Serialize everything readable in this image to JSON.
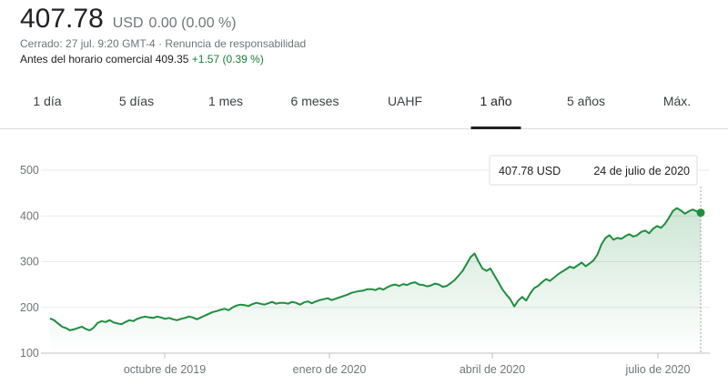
{
  "quote": {
    "price": "407.78",
    "currency": "USD",
    "change": "0.00 (0.00 %)",
    "closed_line": "Cerrado: 27 jul. 9:20 GMT-4 · ",
    "disclaimer": "Renuncia de responsabilidad",
    "premarket_label": "Antes del horario comercial 409.35",
    "premarket_change": "+1.57 (0.39 %)"
  },
  "tabs": [
    {
      "label": "1 día"
    },
    {
      "label": "5 días"
    },
    {
      "label": "1 mes"
    },
    {
      "label": "6 meses"
    },
    {
      "label": "UAHF"
    },
    {
      "label": "1 año",
      "active": true
    },
    {
      "label": "5 años"
    },
    {
      "label": "Máx."
    }
  ],
  "colors": {
    "line": "#1e8e3e",
    "grid": "#e8eaed",
    "axis": "#70757a"
  },
  "tooltip": {
    "price": "407.78 USD",
    "date": "24 de julio de 2020"
  },
  "chart_data": {
    "type": "line",
    "y_ticks": [
      100,
      200,
      300,
      400,
      500
    ],
    "ylim": [
      100,
      500
    ],
    "x_labels": [
      "octubre de 2019",
      "enero de 2020",
      "abril de 2020",
      "julio de 2020"
    ],
    "grid": true,
    "series": [
      {
        "values": [
          176,
          172,
          165,
          158,
          155,
          150,
          152,
          155,
          158,
          153,
          150,
          156,
          166,
          170,
          168,
          172,
          167,
          165,
          163,
          168,
          172,
          170,
          175,
          178,
          180,
          178,
          177,
          180,
          178,
          175,
          177,
          174,
          172,
          175,
          177,
          180,
          178,
          174,
          178,
          182,
          186,
          190,
          192,
          195,
          197,
          194,
          200,
          204,
          206,
          205,
          203,
          207,
          210,
          208,
          206,
          209,
          212,
          208,
          210,
          210,
          208,
          212,
          210,
          206,
          211,
          213,
          209,
          213,
          216,
          218,
          220,
          216,
          219,
          222,
          225,
          228,
          232,
          234,
          236,
          237,
          240,
          240,
          238,
          242,
          239,
          244,
          248,
          250,
          247,
          251,
          249,
          253,
          255,
          250,
          249,
          246,
          248,
          252,
          250,
          245,
          247,
          253,
          260,
          270,
          280,
          295,
          310,
          318,
          300,
          285,
          280,
          285,
          270,
          255,
          240,
          228,
          218,
          202,
          215,
          223,
          215,
          230,
          242,
          247,
          255,
          262,
          258,
          265,
          272,
          278,
          283,
          289,
          286,
          292,
          298,
          290,
          296,
          303,
          316,
          338,
          352,
          358,
          348,
          352,
          350,
          356,
          360,
          355,
          358,
          365,
          368,
          362,
          372,
          378,
          374,
          383,
          396,
          411,
          417,
          412,
          405,
          410,
          414,
          410,
          407
        ]
      }
    ]
  }
}
